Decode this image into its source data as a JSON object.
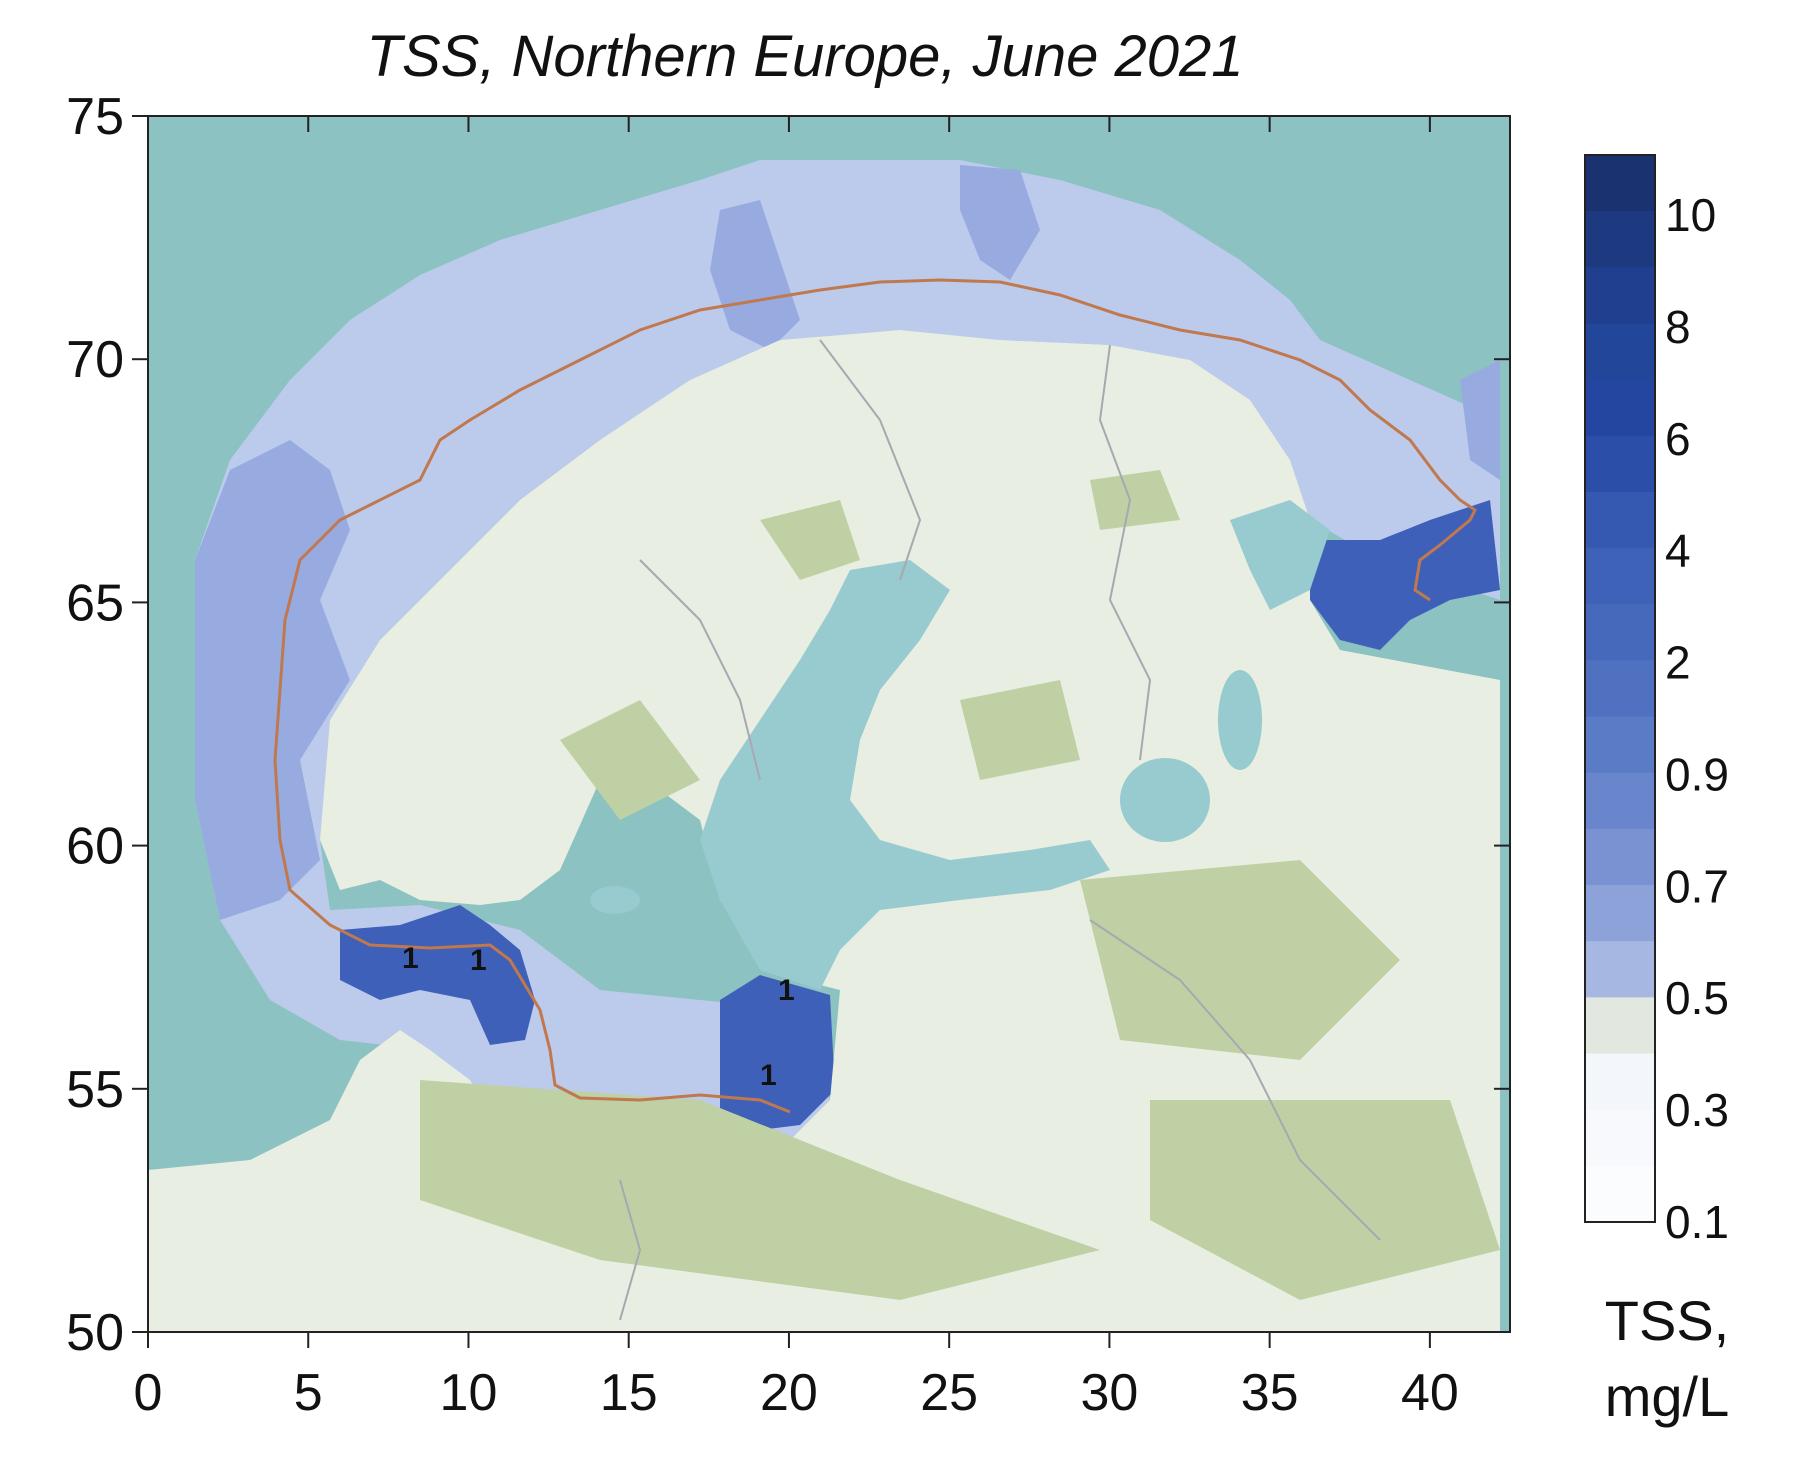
{
  "chart_data": {
    "type": "map",
    "title": "TSS, Northern Europe, June 2021",
    "x_ticks": [
      "0",
      "5",
      "10",
      "15",
      "20",
      "25",
      "30",
      "35",
      "40"
    ],
    "y_ticks": [
      "75",
      "70",
      "65",
      "60",
      "55",
      "50"
    ],
    "xlim": [
      0,
      42.5
    ],
    "ylim": [
      50,
      75
    ],
    "colorbar": {
      "labels": [
        "10",
        "8",
        "6",
        "4",
        "2",
        "0.9",
        "0.7",
        "0.5",
        "0.3",
        "0.1"
      ],
      "unit_line1": "TSS,",
      "unit_line2": "mg/L",
      "colors_top_to_bottom": [
        "#1b3270",
        "#1d3a80",
        "#203f8e",
        "#22469a",
        "#2546a0",
        "#2b4ea8",
        "#3558b0",
        "#3e62b7",
        "#4769bb",
        "#5071c0",
        "#5a7bc5",
        "#6985cb",
        "#7a92d1",
        "#8ca2d8",
        "#a6b8e2",
        "#e2e8e0",
        "#f3f6fb",
        "#f7f9fc",
        "#fafcfe"
      ]
    },
    "contour_labels": [
      "1",
      "1",
      "1",
      "1"
    ],
    "colors": {
      "sea": "#8cc2c1",
      "land": "#e9eee2",
      "forest": "#bfd0a4",
      "water_inland": "#97cbcf",
      "tss_light": "#bccbeb",
      "tss_mid": "#98abe0",
      "tss_dark": "#3f60b8",
      "ship_track": "#c0784e"
    }
  }
}
